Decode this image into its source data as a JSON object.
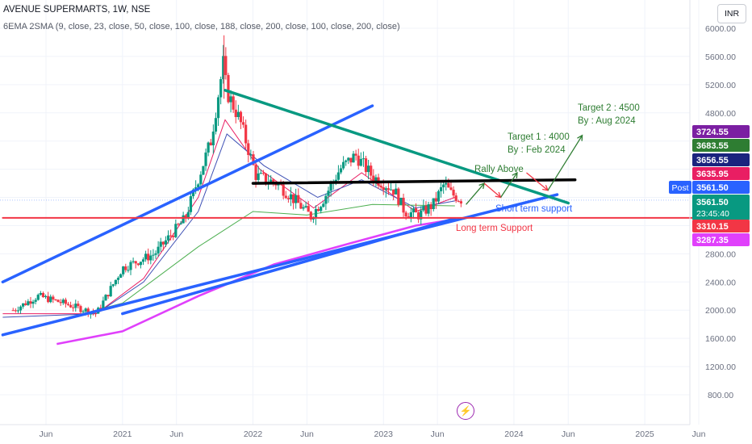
{
  "header": {
    "title": "AVENUE SUPERMARTS, 1W, NSE",
    "indicators": "6EMA 2SMA (9, close, 23, close, 50, close, 100, close, 188, close, 200, close, 100, close, 200, close)",
    "currency_button": "INR",
    "lightning_icon": "lightning-icon"
  },
  "chart_data": {
    "type": "candlestick",
    "symbol": "AVENUE SUPERMARTS",
    "timeframe": "1W",
    "exchange": "NSE",
    "y_axis": {
      "ticks": [
        800,
        1200,
        1600,
        2000,
        2400,
        2800,
        3200,
        3600,
        4000,
        4400,
        4800,
        5200,
        5600,
        6000
      ],
      "tick_labels": [
        "800.00",
        "1200.00",
        "1600.00",
        "2000.00",
        "2400.00",
        "2800.00",
        "",
        "",
        "",
        "",
        "4800.00",
        "5200.00",
        "5600.00",
        "6000.00"
      ],
      "range": [
        568,
        6257
      ]
    },
    "x_axis": {
      "tick_labels": [
        "Jun",
        "2021",
        "Jun",
        "2022",
        "Jun",
        "2023",
        "Jun",
        "2024",
        "Jun",
        "2025",
        "Jun"
      ],
      "tick_dates": [
        "2020-06-01",
        "2021-01-01",
        "2021-06-01",
        "2022-01-01",
        "2022-06-01",
        "2023-01-01",
        "2023-06-01",
        "2024-01-01",
        "2024-06-01",
        "2025-01-01",
        "2025-06-01"
      ]
    },
    "price_path": [
      [
        "2020-03-01",
        2000
      ],
      [
        "2020-05-10",
        2200
      ],
      [
        "2020-07-20",
        2100
      ],
      [
        "2020-10-20",
        1950
      ],
      [
        "2021-01-01",
        2600
      ],
      [
        "2021-04-01",
        2800
      ],
      [
        "2021-06-25",
        3300
      ],
      [
        "2021-09-05",
        4400
      ],
      [
        "2021-10-10",
        5500
      ],
      [
        "2021-10-20",
        5100
      ],
      [
        "2021-11-25",
        4700
      ],
      [
        "2022-01-10",
        3900
      ],
      [
        "2022-03-10",
        3800
      ],
      [
        "2022-05-10",
        3500
      ],
      [
        "2022-06-12",
        3330
      ],
      [
        "2022-07-20",
        3600
      ],
      [
        "2022-09-01",
        4000
      ],
      [
        "2022-10-15",
        4200
      ],
      [
        "2022-12-01",
        3900
      ],
      [
        "2023-02-01",
        3700
      ],
      [
        "2023-03-01",
        3400
      ],
      [
        "2023-04-10",
        3350
      ],
      [
        "2023-05-20",
        3500
      ],
      [
        "2023-06-20",
        3790
      ],
      [
        "2023-07-10",
        3650
      ],
      [
        "2023-08-10",
        3561.5
      ]
    ],
    "moving_averages": [
      {
        "color": "#e91e63",
        "points": [
          [
            "2020-02-01",
            1950
          ],
          [
            "2020-10-20",
            1950
          ],
          [
            "2021-03-01",
            2450
          ],
          [
            "2021-08-01",
            3600
          ],
          [
            "2021-10-15",
            4700
          ],
          [
            "2022-01-20",
            4000
          ],
          [
            "2022-06-20",
            3450
          ],
          [
            "2022-11-01",
            3950
          ],
          [
            "2023-04-01",
            3400
          ],
          [
            "2023-07-20",
            3600
          ]
        ]
      },
      {
        "color": "#3f51b5",
        "points": [
          [
            "2020-02-01",
            1900
          ],
          [
            "2020-10-20",
            1950
          ],
          [
            "2021-03-01",
            2400
          ],
          [
            "2021-08-01",
            3400
          ],
          [
            "2021-10-20",
            4500
          ],
          [
            "2022-02-01",
            4050
          ],
          [
            "2022-07-01",
            3600
          ],
          [
            "2022-11-01",
            3850
          ],
          [
            "2023-04-01",
            3450
          ],
          [
            "2023-07-20",
            3550
          ]
        ]
      },
      {
        "color": "#4caf50",
        "points": [
          [
            "2020-02-01",
            1650
          ],
          [
            "2021-01-01",
            2100
          ],
          [
            "2021-08-01",
            2900
          ],
          [
            "2022-01-01",
            3400
          ],
          [
            "2022-06-01",
            3350
          ],
          [
            "2022-12-01",
            3500
          ],
          [
            "2023-07-20",
            3480
          ]
        ]
      },
      {
        "color": "#e040fb",
        "points": [
          [
            "2020-07-01",
            1520
          ],
          [
            "2021-01-01",
            1700
          ],
          [
            "2021-08-01",
            2200
          ],
          [
            "2022-03-01",
            2650
          ],
          [
            "2022-10-01",
            2950
          ],
          [
            "2023-04-01",
            3200
          ],
          [
            "2023-07-20",
            3290
          ]
        ]
      }
    ],
    "drawings": [
      {
        "name": "upper-channel-line",
        "color": "#2962ff",
        "from": [
          "2020-02-01",
          2400
        ],
        "to": [
          "2022-12-01",
          4900
        ]
      },
      {
        "name": "inner-channel-line",
        "color": "#2962ff",
        "from": [
          "2021-01-01",
          1950
        ],
        "to": [
          "2023-07-20",
          3300
        ]
      },
      {
        "name": "short-term-support-line",
        "color": "#2962ff",
        "from": [
          "2020-02-01",
          1650
        ],
        "to": [
          "2024-05-01",
          3640
        ]
      },
      {
        "name": "descending-resistance-line",
        "color": "#089981",
        "from": [
          "2021-10-15",
          5120
        ],
        "to": [
          "2024-06-01",
          3520
        ]
      },
      {
        "name": "breakout-level-line",
        "color": "#000000",
        "from": [
          "2022-01-01",
          3800
        ],
        "to": [
          "2024-06-20",
          3850
        ]
      },
      {
        "name": "long-term-support-line",
        "color": "#f23645",
        "from": [
          "2020-02-01",
          3310
        ],
        "to": [
          "2025-08-01",
          3310
        ]
      }
    ],
    "annotations": [
      {
        "text": "Target 2 : 4500",
        "color": "#2e7d32"
      },
      {
        "text": "By : Aug 2024",
        "color": "#2e7d32"
      },
      {
        "text": "Target 1 : 4000",
        "color": "#2e7d32"
      },
      {
        "text": "By : Feb 2024",
        "color": "#2e7d32"
      },
      {
        "text": "Rally Above",
        "color": "#2e7d32"
      },
      {
        "text": "Short term support",
        "color": "#2962ff"
      },
      {
        "text": "Long term Support",
        "color": "#f23645"
      }
    ],
    "price_labels": [
      {
        "text": "3724.55",
        "color": "#7b1fa2"
      },
      {
        "text": "3683.55",
        "color": "#2e7d32"
      },
      {
        "text": "3656.55",
        "color": "#1a237e"
      },
      {
        "text": "3635.95",
        "color": "#e91e63"
      },
      {
        "text": "3561.50",
        "color": "#2962ff",
        "tag": "Post"
      },
      {
        "text": "3561.50",
        "color": "#089981",
        "sub": "23:45:40"
      },
      {
        "text": "3310.15",
        "color": "#f23645"
      },
      {
        "text": "3287.35",
        "color": "#e040fb"
      }
    ],
    "grid": true,
    "legend": "none"
  }
}
